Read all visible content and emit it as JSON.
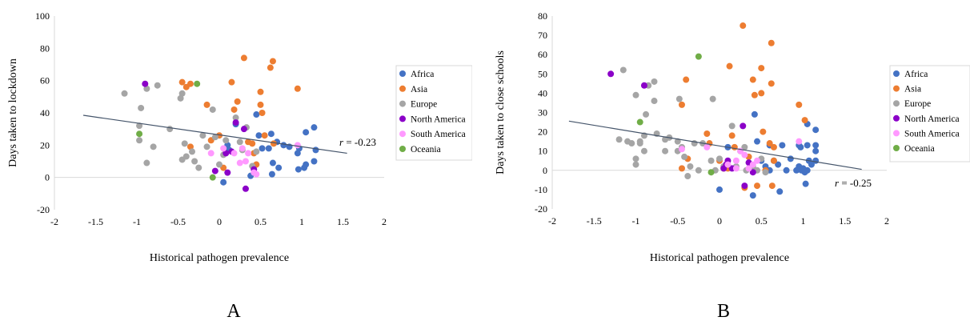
{
  "colors": {
    "Africa": "#4472C4",
    "Asia": "#ED7D31",
    "Europe": "#A5A5A5",
    "North America": "#8B00C8",
    "South America": "#FF99FF",
    "Oceania": "#70AD47",
    "trendline": "#44546A"
  },
  "chart_data": [
    {
      "type": "scatter",
      "panel_label": "A",
      "title": "",
      "xlabel": "Historical pathogen prevalence",
      "ylabel": "Days taken to lockdown",
      "xlim": [
        -2,
        2
      ],
      "ylim": [
        -20,
        100
      ],
      "xticks": [
        "-2",
        "-1.5",
        "-1",
        "-0.5",
        "0",
        "0.5",
        "1",
        "1.5",
        "2"
      ],
      "yticks": [
        "-20",
        "0",
        "20",
        "40",
        "60",
        "80",
        "100"
      ],
      "grid": false,
      "legend_position": "right",
      "legend": [
        "Africa",
        "Asia",
        "Europe",
        "North America",
        "South America",
        "Oceania"
      ],
      "annotation": {
        "prefix": "r",
        "text": " = -0.23"
      },
      "trendline": {
        "x": [
          -1.65,
          1.55
        ],
        "y": [
          38.5,
          15
        ]
      },
      "series": [
        {
          "name": "Africa",
          "points": [
            [
              0.1,
              20
            ],
            [
              0.12,
              17
            ],
            [
              0.05,
              -3
            ],
            [
              0.38,
              1
            ],
            [
              0.42,
              7
            ],
            [
              0.45,
              39
            ],
            [
              0.48,
              26
            ],
            [
              0.52,
              18
            ],
            [
              0.6,
              18
            ],
            [
              0.63,
              27
            ],
            [
              0.64,
              2
            ],
            [
              0.65,
              9
            ],
            [
              0.7,
              22
            ],
            [
              0.72,
              6
            ],
            [
              0.78,
              20
            ],
            [
              0.85,
              19
            ],
            [
              0.95,
              15
            ],
            [
              0.96,
              5
            ],
            [
              0.97,
              18
            ],
            [
              1.03,
              6
            ],
            [
              1.05,
              28
            ],
            [
              1.05,
              8
            ],
            [
              1.15,
              31
            ],
            [
              1.15,
              10
            ],
            [
              1.17,
              17
            ],
            [
              0.2,
              33
            ]
          ]
        },
        {
          "name": "Asia",
          "points": [
            [
              -0.45,
              59
            ],
            [
              -0.4,
              56
            ],
            [
              -0.35,
              58
            ],
            [
              -0.35,
              19
            ],
            [
              -0.15,
              45
            ],
            [
              -0.1,
              23
            ],
            [
              0.0,
              26
            ],
            [
              0.05,
              6
            ],
            [
              0.15,
              59
            ],
            [
              0.18,
              42
            ],
            [
              0.22,
              47
            ],
            [
              0.3,
              74
            ],
            [
              0.35,
              22
            ],
            [
              0.4,
              21
            ],
            [
              0.42,
              15
            ],
            [
              0.45,
              8
            ],
            [
              0.5,
              45
            ],
            [
              0.52,
              40
            ],
            [
              0.55,
              26
            ],
            [
              0.62,
              68
            ],
            [
              0.65,
              72
            ],
            [
              0.66,
              21
            ],
            [
              0.5,
              53
            ],
            [
              0.95,
              55
            ]
          ]
        },
        {
          "name": "Europe",
          "points": [
            [
              -1.15,
              52
            ],
            [
              -0.95,
              43
            ],
            [
              -0.97,
              32
            ],
            [
              -0.97,
              23
            ],
            [
              -0.88,
              55
            ],
            [
              -0.88,
              9
            ],
            [
              -0.75,
              57
            ],
            [
              -0.8,
              19
            ],
            [
              -0.6,
              30
            ],
            [
              -0.45,
              52
            ],
            [
              -0.47,
              49
            ],
            [
              -0.45,
              11
            ],
            [
              -0.42,
              21
            ],
            [
              -0.4,
              13
            ],
            [
              -0.33,
              16
            ],
            [
              -0.3,
              10
            ],
            [
              -0.25,
              6
            ],
            [
              -0.2,
              26
            ],
            [
              -0.15,
              19
            ],
            [
              -0.08,
              42
            ],
            [
              -0.05,
              25
            ],
            [
              0.0,
              8
            ],
            [
              0.05,
              14
            ],
            [
              0.08,
              23
            ],
            [
              0.2,
              37
            ],
            [
              0.25,
              22
            ],
            [
              0.28,
              17
            ],
            [
              0.33,
              31
            ],
            [
              0.45,
              16
            ],
            [
              0.4,
              7
            ]
          ]
        },
        {
          "name": "North America",
          "points": [
            [
              -0.9,
              58
            ],
            [
              -0.05,
              4
            ],
            [
              0.08,
              15
            ],
            [
              0.1,
              3
            ],
            [
              0.15,
              16
            ],
            [
              0.2,
              34
            ],
            [
              0.3,
              30
            ],
            [
              0.32,
              -7
            ],
            [
              0.42,
              5
            ]
          ]
        },
        {
          "name": "South America",
          "points": [
            [
              -0.1,
              15
            ],
            [
              0.05,
              18
            ],
            [
              0.18,
              15
            ],
            [
              0.25,
              9
            ],
            [
              0.28,
              18
            ],
            [
              0.32,
              10
            ],
            [
              0.35,
              15
            ],
            [
              0.42,
              3
            ],
            [
              0.45,
              2
            ],
            [
              0.95,
              20
            ]
          ]
        },
        {
          "name": "Oceania",
          "points": [
            [
              -0.97,
              27
            ],
            [
              -0.27,
              58
            ],
            [
              -0.08,
              0
            ]
          ]
        }
      ]
    },
    {
      "type": "scatter",
      "panel_label": "B",
      "title": "",
      "xlabel": "Historical pathogen prevalence",
      "ylabel": "Days taken to close schools",
      "xlim": [
        -2,
        2
      ],
      "ylim": [
        -20,
        80
      ],
      "xticks": [
        "-2",
        "-1.5",
        "-1",
        "-0.5",
        "0",
        "0.5",
        "1",
        "1.5",
        "2"
      ],
      "yticks": [
        "-20",
        "-10",
        "0",
        "10",
        "20",
        "30",
        "40",
        "50",
        "60",
        "70",
        "80"
      ],
      "grid": false,
      "legend_position": "right",
      "legend": [
        "Africa",
        "Asia",
        "Europe",
        "North America",
        "South America",
        "Oceania"
      ],
      "annotation": {
        "prefix": "r",
        "text": " = -0.25"
      },
      "trendline": {
        "x": [
          -1.8,
          1.7
        ],
        "y": [
          25.5,
          0.5
        ]
      },
      "series": [
        {
          "name": "Africa",
          "points": [
            [
              0.0,
              -10
            ],
            [
              0.1,
              12
            ],
            [
              0.4,
              -13
            ],
            [
              0.42,
              29
            ],
            [
              0.45,
              15
            ],
            [
              0.5,
              5
            ],
            [
              0.55,
              2
            ],
            [
              0.6,
              13
            ],
            [
              0.6,
              0
            ],
            [
              0.65,
              5
            ],
            [
              0.7,
              3
            ],
            [
              0.72,
              -11
            ],
            [
              0.75,
              13
            ],
            [
              0.8,
              0
            ],
            [
              0.85,
              6
            ],
            [
              0.95,
              13
            ],
            [
              0.95,
              2
            ],
            [
              0.97,
              12
            ],
            [
              0.98,
              0
            ],
            [
              1.0,
              1
            ],
            [
              1.02,
              -1
            ],
            [
              1.03,
              -7
            ],
            [
              1.05,
              13
            ],
            [
              1.05,
              24
            ],
            [
              1.07,
              5
            ],
            [
              1.1,
              3
            ],
            [
              1.15,
              21
            ],
            [
              1.15,
              13
            ],
            [
              1.15,
              10
            ],
            [
              1.15,
              5
            ],
            [
              0.92,
              0
            ],
            [
              1.05,
              0
            ]
          ]
        },
        {
          "name": "Asia",
          "points": [
            [
              -0.45,
              34
            ],
            [
              -0.4,
              47
            ],
            [
              -0.45,
              1
            ],
            [
              -0.38,
              6
            ],
            [
              -0.15,
              19
            ],
            [
              -0.12,
              14
            ],
            [
              0.0,
              5
            ],
            [
              0.05,
              1
            ],
            [
              0.1,
              1
            ],
            [
              0.12,
              54
            ],
            [
              0.15,
              18
            ],
            [
              0.18,
              12
            ],
            [
              0.28,
              75
            ],
            [
              0.3,
              -9
            ],
            [
              0.35,
              7
            ],
            [
              0.4,
              47
            ],
            [
              0.42,
              39
            ],
            [
              0.45,
              -8
            ],
            [
              0.5,
              53
            ],
            [
              0.5,
              40
            ],
            [
              0.52,
              20
            ],
            [
              0.55,
              0
            ],
            [
              0.6,
              14
            ],
            [
              0.62,
              45
            ],
            [
              0.62,
              66
            ],
            [
              0.63,
              -8
            ],
            [
              0.65,
              12
            ],
            [
              0.65,
              5
            ],
            [
              0.95,
              34
            ],
            [
              1.02,
              26
            ]
          ]
        },
        {
          "name": "Europe",
          "points": [
            [
              -1.2,
              16
            ],
            [
              -1.15,
              52
            ],
            [
              -1.1,
              15
            ],
            [
              -1.05,
              14
            ],
            [
              -1.0,
              39
            ],
            [
              -1.0,
              6
            ],
            [
              -1.0,
              3
            ],
            [
              -0.95,
              14
            ],
            [
              -0.9,
              10
            ],
            [
              -0.9,
              18
            ],
            [
              -0.88,
              29
            ],
            [
              -0.85,
              44
            ],
            [
              -0.78,
              46
            ],
            [
              -0.78,
              36
            ],
            [
              -0.75,
              19
            ],
            [
              -0.65,
              16
            ],
            [
              -0.65,
              10
            ],
            [
              -0.6,
              17
            ],
            [
              -0.5,
              15
            ],
            [
              -0.5,
              10
            ],
            [
              -0.48,
              37
            ],
            [
              -0.45,
              12
            ],
            [
              -0.42,
              7
            ],
            [
              -0.38,
              -3
            ],
            [
              -0.35,
              2
            ],
            [
              -0.3,
              14
            ],
            [
              -0.25,
              0
            ],
            [
              -0.2,
              14
            ],
            [
              -0.1,
              5
            ],
            [
              -0.08,
              37
            ],
            [
              -0.05,
              0
            ],
            [
              0.0,
              6
            ],
            [
              0.05,
              2
            ],
            [
              0.15,
              23
            ],
            [
              0.2,
              2
            ],
            [
              0.25,
              10
            ],
            [
              0.3,
              12
            ],
            [
              0.32,
              0
            ],
            [
              0.35,
              4
            ],
            [
              0.4,
              2
            ],
            [
              0.45,
              0
            ],
            [
              0.5,
              6
            ],
            [
              0.55,
              -1
            ],
            [
              -0.95,
              15
            ]
          ]
        },
        {
          "name": "North America",
          "points": [
            [
              -1.3,
              50
            ],
            [
              -0.9,
              44
            ],
            [
              0.05,
              1
            ],
            [
              0.08,
              3
            ],
            [
              0.1,
              5
            ],
            [
              0.15,
              1
            ],
            [
              0.28,
              23
            ],
            [
              0.3,
              -8
            ],
            [
              0.35,
              4
            ],
            [
              0.4,
              -1
            ]
          ]
        },
        {
          "name": "South America",
          "points": [
            [
              -0.45,
              11
            ],
            [
              -0.15,
              12
            ],
            [
              0.1,
              3
            ],
            [
              0.2,
              5
            ],
            [
              0.25,
              10
            ],
            [
              0.3,
              8
            ],
            [
              0.35,
              1
            ],
            [
              0.4,
              3
            ],
            [
              0.45,
              5
            ],
            [
              0.95,
              15
            ],
            [
              0.2,
              1
            ]
          ]
        },
        {
          "name": "Oceania",
          "points": [
            [
              -0.95,
              25
            ],
            [
              -0.25,
              59
            ],
            [
              -0.1,
              -1
            ]
          ]
        }
      ]
    }
  ]
}
